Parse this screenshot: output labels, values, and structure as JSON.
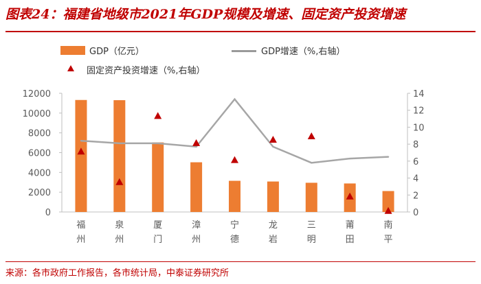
{
  "title": "图表24：福建省地级市2021年GDP规模及增速、固定资产投资增速",
  "source": "来源：各市政府工作报告，各市统计局，中泰证券研究所",
  "colors": {
    "bar": "#ed7d31",
    "line": "#a6a6a6",
    "marker": "#c00000",
    "accent": "#c00000"
  },
  "legend": {
    "gdp": "GDP（亿元）",
    "growth": "GDP增速（%,右轴）",
    "investment": "固定资产投资增速（%,右轴）"
  },
  "chart_data": {
    "type": "bar",
    "title": "福建省地级市2021年GDP规模及增速、固定资产投资增速",
    "categories": [
      "福州",
      "泉州",
      "厦门",
      "漳州",
      "宁德",
      "龙岩",
      "三明",
      "莆田",
      "南平"
    ],
    "series": [
      {
        "name": "GDP（亿元）",
        "type": "bar",
        "axis": "left",
        "values": [
          11324,
          11304,
          7034,
          5025,
          3151,
          3081,
          2953,
          2883,
          2117
        ]
      },
      {
        "name": "GDP增速（%,右轴）",
        "type": "line",
        "axis": "right",
        "values": [
          8.4,
          8.1,
          8.1,
          7.7,
          13.3,
          7.7,
          5.8,
          6.3,
          6.5
        ]
      },
      {
        "name": "固定资产投资增速（%,右轴）",
        "type": "scatter",
        "axis": "right",
        "values": [
          7.1,
          3.5,
          11.3,
          8.1,
          6.1,
          8.5,
          8.9,
          1.8,
          0.1
        ]
      }
    ],
    "ylim_left": [
      0,
      12000
    ],
    "yticks_left": [
      0,
      2000,
      4000,
      6000,
      8000,
      10000,
      12000
    ],
    "ylim_right": [
      0,
      14
    ],
    "yticks_right": [
      0,
      2,
      4,
      6,
      8,
      10,
      12,
      14
    ],
    "xlabel": "",
    "ylabel": "",
    "grid": false
  }
}
